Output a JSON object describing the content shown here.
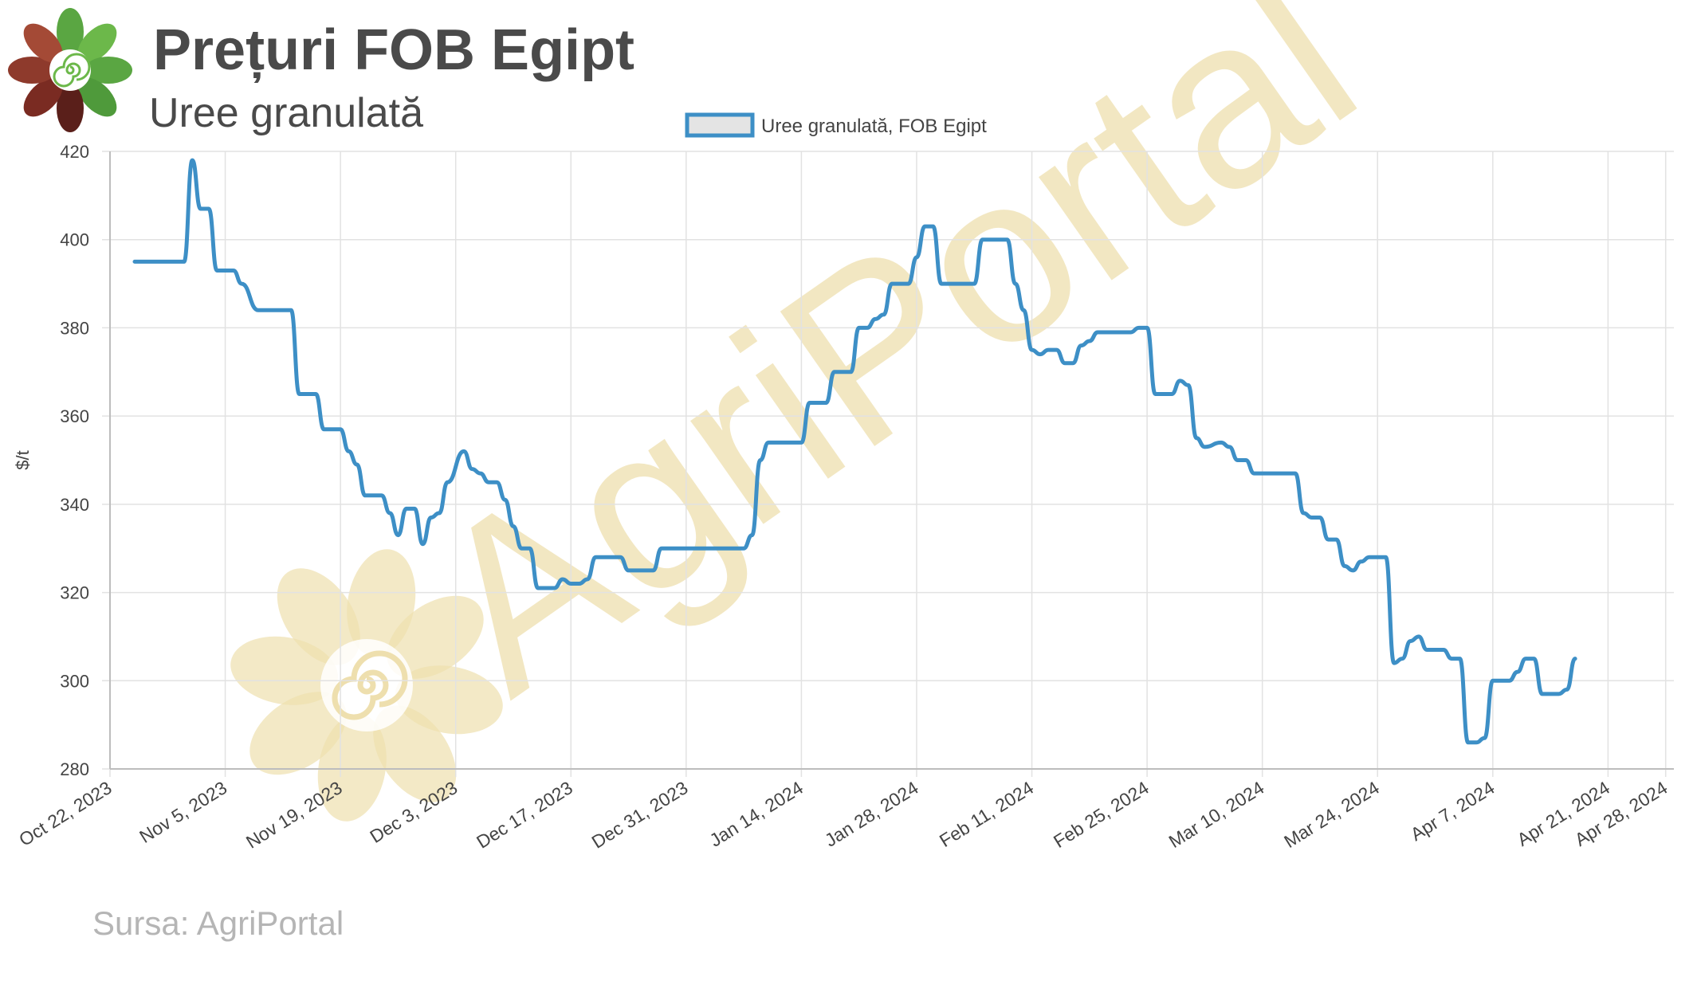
{
  "header": {
    "title": "Prețuri FOB Egipt",
    "subtitle": "Uree granulată"
  },
  "footer": {
    "source": "Sursa: AgriPortal"
  },
  "watermark": {
    "text": "AgriPortal"
  },
  "colors": {
    "line": "#3d8fc6",
    "grid": "#e2e2e2",
    "watermark": "#eedfae",
    "legend_fill": "#e4e4e4"
  },
  "chart_data": {
    "type": "line",
    "title": "",
    "xlabel": "",
    "ylabel": "$/t",
    "ylim": [
      280,
      420
    ],
    "yticks": [
      280,
      300,
      320,
      340,
      360,
      380,
      400,
      420
    ],
    "xlim": [
      "2023-10-22",
      "2024-04-29"
    ],
    "grid": true,
    "legend_position": "top-center",
    "xticks": [
      {
        "date": "2023-10-22",
        "label": "Oct 22, 2023"
      },
      {
        "date": "2023-11-05",
        "label": "Nov 5, 2023"
      },
      {
        "date": "2023-11-19",
        "label": "Nov 19, 2023"
      },
      {
        "date": "2023-12-03",
        "label": "Dec 3, 2023"
      },
      {
        "date": "2023-12-17",
        "label": "Dec 17, 2023"
      },
      {
        "date": "2023-12-31",
        "label": "Dec 31, 2023"
      },
      {
        "date": "2024-01-14",
        "label": "Jan 14, 2024"
      },
      {
        "date": "2024-01-28",
        "label": "Jan 28, 2024"
      },
      {
        "date": "2024-02-11",
        "label": "Feb 11, 2024"
      },
      {
        "date": "2024-02-25",
        "label": "Feb 25, 2024"
      },
      {
        "date": "2024-03-10",
        "label": "Mar 10, 2024"
      },
      {
        "date": "2024-03-24",
        "label": "Mar 24, 2024"
      },
      {
        "date": "2024-04-07",
        "label": "Apr 7, 2024"
      },
      {
        "date": "2024-04-21",
        "label": "Apr 21, 2024"
      },
      {
        "date": "2024-04-28",
        "label": "Apr 28, 2024"
      }
    ],
    "series": [
      {
        "name": "Uree granulată, FOB Egipt",
        "points": [
          [
            "2023-10-25",
            395
          ],
          [
            "2023-10-31",
            395
          ],
          [
            "2023-11-01",
            418
          ],
          [
            "2023-11-02",
            407
          ],
          [
            "2023-11-03",
            407
          ],
          [
            "2023-11-04",
            393
          ],
          [
            "2023-11-06",
            393
          ],
          [
            "2023-11-07",
            390
          ],
          [
            "2023-11-09",
            384
          ],
          [
            "2023-11-13",
            384
          ],
          [
            "2023-11-14",
            365
          ],
          [
            "2023-11-16",
            365
          ],
          [
            "2023-11-17",
            357
          ],
          [
            "2023-11-19",
            357
          ],
          [
            "2023-11-20",
            352
          ],
          [
            "2023-11-21",
            349
          ],
          [
            "2023-11-22",
            342
          ],
          [
            "2023-11-24",
            342
          ],
          [
            "2023-11-25",
            338
          ],
          [
            "2023-11-26",
            333
          ],
          [
            "2023-11-27",
            339
          ],
          [
            "2023-11-28",
            339
          ],
          [
            "2023-11-29",
            331
          ],
          [
            "2023-11-30",
            337
          ],
          [
            "2023-12-01",
            338
          ],
          [
            "2023-12-02",
            345
          ],
          [
            "2023-12-04",
            352
          ],
          [
            "2023-12-05",
            348
          ],
          [
            "2023-12-06",
            347
          ],
          [
            "2023-12-07",
            345
          ],
          [
            "2023-12-08",
            345
          ],
          [
            "2023-12-09",
            341
          ],
          [
            "2023-12-10",
            335
          ],
          [
            "2023-12-11",
            330
          ],
          [
            "2023-12-12",
            330
          ],
          [
            "2023-12-13",
            321
          ],
          [
            "2023-12-15",
            321
          ],
          [
            "2023-12-16",
            323
          ],
          [
            "2023-12-17",
            322
          ],
          [
            "2023-12-18",
            322
          ],
          [
            "2023-12-19",
            323
          ],
          [
            "2023-12-20",
            328
          ],
          [
            "2023-12-23",
            328
          ],
          [
            "2023-12-24",
            325
          ],
          [
            "2023-12-27",
            325
          ],
          [
            "2023-12-28",
            330
          ],
          [
            "2023-12-30",
            330
          ],
          [
            "2024-01-07",
            330
          ],
          [
            "2024-01-08",
            333
          ],
          [
            "2024-01-09",
            350
          ],
          [
            "2024-01-10",
            354
          ],
          [
            "2024-01-13",
            354
          ],
          [
            "2024-01-14",
            354
          ],
          [
            "2024-01-15",
            363
          ],
          [
            "2024-01-17",
            363
          ],
          [
            "2024-01-18",
            370
          ],
          [
            "2024-01-20",
            370
          ],
          [
            "2024-01-21",
            380
          ],
          [
            "2024-01-22",
            380
          ],
          [
            "2024-01-23",
            382
          ],
          [
            "2024-01-24",
            383
          ],
          [
            "2024-01-25",
            390
          ],
          [
            "2024-01-27",
            390
          ],
          [
            "2024-01-28",
            396
          ],
          [
            "2024-01-29",
            403
          ],
          [
            "2024-01-30",
            403
          ],
          [
            "2024-01-31",
            390
          ],
          [
            "2024-02-04",
            390
          ],
          [
            "2024-02-05",
            400
          ],
          [
            "2024-02-08",
            400
          ],
          [
            "2024-02-09",
            390
          ],
          [
            "2024-02-10",
            384
          ],
          [
            "2024-02-11",
            375
          ],
          [
            "2024-02-12",
            374
          ],
          [
            "2024-02-13",
            375
          ],
          [
            "2024-02-14",
            375
          ],
          [
            "2024-02-15",
            372
          ],
          [
            "2024-02-16",
            372
          ],
          [
            "2024-02-17",
            376
          ],
          [
            "2024-02-18",
            377
          ],
          [
            "2024-02-19",
            379
          ],
          [
            "2024-02-23",
            379
          ],
          [
            "2024-02-24",
            380
          ],
          [
            "2024-02-25",
            380
          ],
          [
            "2024-02-26",
            365
          ],
          [
            "2024-02-28",
            365
          ],
          [
            "2024-02-29",
            368
          ],
          [
            "2024-03-01",
            367
          ],
          [
            "2024-03-02",
            355
          ],
          [
            "2024-03-03",
            353
          ],
          [
            "2024-03-05",
            354
          ],
          [
            "2024-03-06",
            353
          ],
          [
            "2024-03-07",
            350
          ],
          [
            "2024-03-08",
            350
          ],
          [
            "2024-03-09",
            347
          ],
          [
            "2024-03-14",
            347
          ],
          [
            "2024-03-15",
            338
          ],
          [
            "2024-03-16",
            337
          ],
          [
            "2024-03-17",
            337
          ],
          [
            "2024-03-18",
            332
          ],
          [
            "2024-03-19",
            332
          ],
          [
            "2024-03-20",
            326
          ],
          [
            "2024-03-21",
            325
          ],
          [
            "2024-03-22",
            327
          ],
          [
            "2024-03-23",
            328
          ],
          [
            "2024-03-25",
            328
          ],
          [
            "2024-03-26",
            304
          ],
          [
            "2024-03-27",
            305
          ],
          [
            "2024-03-28",
            309
          ],
          [
            "2024-03-29",
            310
          ],
          [
            "2024-03-30",
            307
          ],
          [
            "2024-04-01",
            307
          ],
          [
            "2024-04-02",
            305
          ],
          [
            "2024-04-03",
            305
          ],
          [
            "2024-04-04",
            286
          ],
          [
            "2024-04-05",
            286
          ],
          [
            "2024-04-06",
            287
          ],
          [
            "2024-04-07",
            300
          ],
          [
            "2024-04-09",
            300
          ],
          [
            "2024-04-10",
            302
          ],
          [
            "2024-04-11",
            305
          ],
          [
            "2024-04-12",
            305
          ],
          [
            "2024-04-13",
            297
          ],
          [
            "2024-04-15",
            297
          ],
          [
            "2024-04-16",
            298
          ],
          [
            "2024-04-17",
            305
          ]
        ]
      }
    ]
  }
}
